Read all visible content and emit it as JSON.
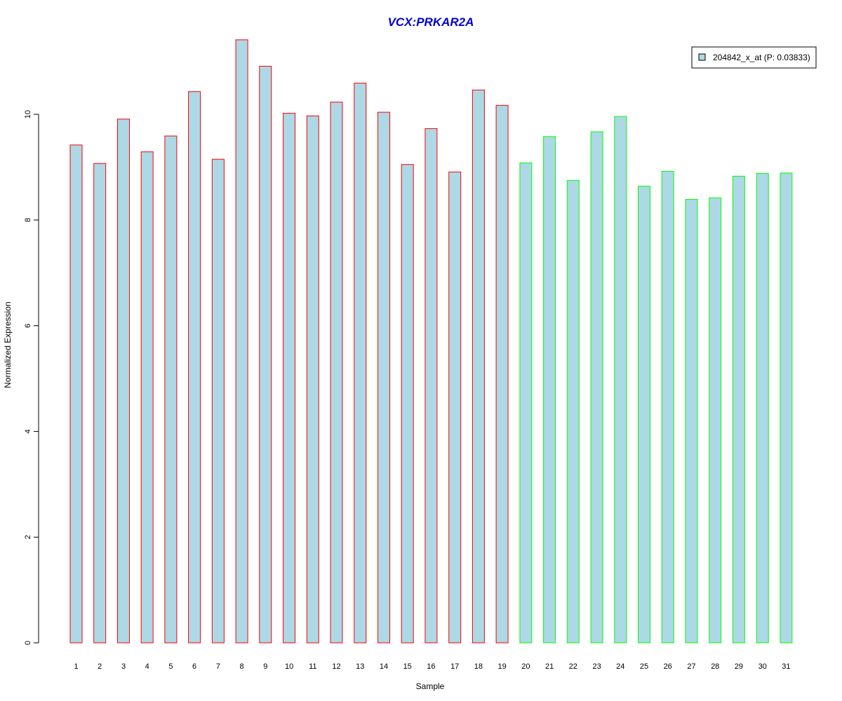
{
  "chart_data": {
    "type": "bar",
    "title": "VCX:PRKAR2A",
    "xlabel": "Sample",
    "ylabel": "Normalized Expression",
    "ylim": [
      0,
      11.5
    ],
    "yticks": [
      0,
      2,
      4,
      6,
      8,
      10
    ],
    "grid": false,
    "legend_position": "top-right",
    "categories": [
      "1",
      "2",
      "3",
      "4",
      "5",
      "6",
      "7",
      "8",
      "9",
      "10",
      "11",
      "12",
      "13",
      "14",
      "15",
      "16",
      "17",
      "18",
      "19",
      "20",
      "21",
      "22",
      "23",
      "24",
      "25",
      "26",
      "27",
      "28",
      "29",
      "30",
      "31"
    ],
    "series": [
      {
        "name": "204842_x_at (P: 0.03833)",
        "values": [
          9.42,
          9.07,
          9.91,
          9.29,
          9.59,
          10.43,
          9.15,
          11.41,
          10.91,
          10.02,
          9.97,
          10.23,
          10.59,
          10.04,
          9.05,
          9.73,
          8.91,
          10.46,
          10.17,
          9.08,
          9.58,
          8.75,
          9.67,
          9.96,
          8.64,
          8.92,
          8.39,
          8.42,
          8.83,
          8.88,
          8.89
        ],
        "fill": "#add8e6",
        "border_colors_by_category": [
          "#ff0000",
          "#ff0000",
          "#ff0000",
          "#ff0000",
          "#ff0000",
          "#ff0000",
          "#ff0000",
          "#ff0000",
          "#ff0000",
          "#ff0000",
          "#ff0000",
          "#ff0000",
          "#ff0000",
          "#ff0000",
          "#ff0000",
          "#ff0000",
          "#ff0000",
          "#ff0000",
          "#ff0000",
          "#00ff00",
          "#00ff00",
          "#00ff00",
          "#00ff00",
          "#00ff00",
          "#00ff00",
          "#00ff00",
          "#00ff00",
          "#00ff00",
          "#00ff00",
          "#00ff00",
          "#00ff00"
        ]
      }
    ],
    "colors": {
      "title": "#0000cd",
      "axis": "#000000",
      "bar_fill": "#add8e6"
    }
  }
}
